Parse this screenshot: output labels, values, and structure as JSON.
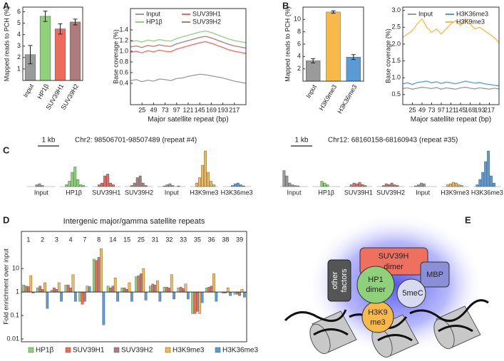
{
  "panel_labels": [
    "A",
    "B",
    "C",
    "D",
    "E"
  ],
  "chart_data": [
    {
      "type": "bar",
      "ylabel": "Mapped reads to PCH (%)",
      "categories": [
        "Input",
        "HP1β",
        "SUV39H1",
        "SUV39H2"
      ],
      "values": [
        2.25,
        5.6,
        4.5,
        5.1
      ],
      "errors": [
        0.8,
        0.45,
        0.45,
        0.25
      ],
      "colors": [
        "#9a9a9a",
        "#8fd17a",
        "#ee6a5c",
        "#b07b7b"
      ],
      "ylim": [
        0,
        6.4
      ],
      "yticks": [
        1,
        2,
        3,
        4,
        5,
        6
      ]
    },
    {
      "type": "line",
      "ylabel": "Base coverage (%)",
      "xlabel": "Major satellite repeat (bp)",
      "x": [
        1,
        13,
        25,
        37,
        49,
        61,
        73,
        85,
        97,
        109,
        121,
        133,
        145,
        157,
        169,
        181,
        193,
        205,
        217,
        229,
        241
      ],
      "xlim": [
        1,
        241
      ],
      "xticks": [
        25,
        49,
        73,
        97,
        121,
        145,
        169,
        193,
        217
      ],
      "ylim": [
        0,
        1.8
      ],
      "yticks": [
        0.4,
        0.6,
        0.8,
        {
          "value": 1,
          "label": "1.0"
        },
        1.2,
        1.4
      ],
      "series": [
        {
          "name": "Input",
          "color": "#9a9a9a",
          "values": [
            0.45,
            0.47,
            0.43,
            0.46,
            0.44,
            0.48,
            0.47,
            0.45,
            0.49,
            0.5,
            0.53,
            0.55,
            0.57,
            0.56,
            0.54,
            0.52,
            0.5,
            0.47,
            0.44,
            0.42,
            0.4
          ]
        },
        {
          "name": "HP1β",
          "color": "#8fd17a",
          "values": [
            1.18,
            1.2,
            1.17,
            1.21,
            1.19,
            1.22,
            1.2,
            1.19,
            1.24,
            1.27,
            1.3,
            1.33,
            1.36,
            1.38,
            1.35,
            1.31,
            1.27,
            1.23,
            1.2,
            1.18,
            1.16
          ]
        },
        {
          "name": "SUV39H1",
          "color": "#ee6a5c",
          "values": [
            0.98,
            1.0,
            0.97,
            1.01,
            0.99,
            1.02,
            1.0,
            0.99,
            1.04,
            1.07,
            1.1,
            1.13,
            1.16,
            1.18,
            1.15,
            1.11,
            1.07,
            1.03,
            1.0,
            0.98,
            0.96
          ]
        },
        {
          "name": "SUV39H2",
          "color": "#b07b7b",
          "values": [
            1.08,
            1.1,
            1.07,
            1.11,
            1.09,
            1.12,
            1.1,
            1.09,
            1.14,
            1.17,
            1.2,
            1.23,
            1.26,
            1.28,
            1.25,
            1.21,
            1.17,
            1.13,
            1.1,
            1.08,
            1.06
          ]
        }
      ]
    },
    {
      "type": "bar",
      "ylabel": "Mapped reads to PCH (%)",
      "categories": [
        "Input",
        "H3K9me3",
        "H3K36me3"
      ],
      "values": [
        3.3,
        11.2,
        3.9
      ],
      "errors": [
        0.35,
        0.2,
        0.4
      ],
      "colors": [
        "#9a9a9a",
        "#f7b94a",
        "#5b9bd5"
      ],
      "ylim": [
        0,
        12
      ],
      "yticks": [
        2,
        4,
        6,
        8,
        10
      ]
    },
    {
      "type": "line",
      "ylabel": "Base coverage (%)",
      "xlabel": "Major satellite repeat (bp)",
      "x": [
        1,
        13,
        25,
        37,
        49,
        61,
        73,
        85,
        97,
        109,
        121,
        133,
        145,
        157,
        169,
        181,
        193,
        205,
        217,
        229,
        241
      ],
      "xlim": [
        1,
        241
      ],
      "xticks": [
        25,
        49,
        73,
        97,
        121,
        145,
        169,
        193,
        217
      ],
      "ylim": [
        0.2,
        3.1
      ],
      "yticks": [
        0.5,
        {
          "value": 1,
          "label": "1.0"
        },
        1.5,
        {
          "value": 2,
          "label": "2.0"
        },
        2.5,
        {
          "value": 3,
          "label": "3.0"
        }
      ],
      "series": [
        {
          "name": "Input",
          "color": "#9a9a9a",
          "values": [
            0.68,
            0.7,
            0.66,
            0.69,
            0.72,
            0.7,
            0.68,
            0.71,
            0.66,
            0.7,
            0.68,
            0.66,
            0.7,
            0.72,
            0.69,
            0.67,
            0.7,
            0.68,
            0.66,
            0.69,
            0.67
          ]
        },
        {
          "name": "H3K36me3",
          "color": "#5b9bd5",
          "values": [
            0.82,
            0.85,
            0.8,
            0.86,
            0.88,
            0.9,
            0.85,
            0.88,
            0.83,
            0.87,
            0.85,
            0.82,
            0.86,
            0.9,
            0.87,
            0.84,
            0.86,
            0.82,
            0.8,
            0.78,
            0.76
          ]
        },
        {
          "name": "H3K9me3",
          "color": "#f7b94a",
          "values": [
            2.2,
            2.3,
            2.4,
            2.6,
            2.75,
            2.5,
            2.35,
            2.45,
            2.3,
            2.45,
            2.6,
            2.7,
            2.55,
            2.75,
            2.6,
            2.45,
            2.5,
            2.4,
            2.3,
            2.2,
            2.05
          ]
        }
      ]
    },
    {
      "type": "track",
      "title": "Chr2: 98506701-98507489 (repeat #4)",
      "scale_label": "1 kb",
      "ylim": [
        0,
        100
      ],
      "series": [
        {
          "name": "Input",
          "color": "#9a9a9a",
          "values": [
            0,
            0,
            5,
            8,
            3,
            0,
            0,
            0
          ]
        },
        {
          "name": "HP1β",
          "color": "#8fd17a",
          "values": [
            0,
            5,
            15,
            40,
            55,
            20,
            5,
            3
          ]
        },
        {
          "name": "SUV39H1",
          "color": "#ee6a5c",
          "values": [
            0,
            5,
            10,
            30,
            35,
            10,
            5,
            0
          ]
        },
        {
          "name": "SUV39H2",
          "color": "#b07b7b",
          "values": [
            0,
            3,
            10,
            25,
            30,
            10,
            3,
            0
          ]
        },
        {
          "name": "Input",
          "color": "#9a9a9a",
          "values": [
            0,
            2,
            5,
            8,
            3,
            0,
            2,
            0
          ]
        },
        {
          "name": "H3K9me3",
          "color": "#f7b94a",
          "values": [
            0,
            10,
            25,
            60,
            100,
            40,
            15,
            5
          ]
        },
        {
          "name": "H3K36me3",
          "color": "#5b9bd5",
          "values": [
            0,
            0,
            3,
            8,
            10,
            5,
            2,
            0
          ]
        }
      ]
    },
    {
      "type": "track",
      "title": "Chr12: 68160158-68160943 (repeat #35)",
      "scale_label": "1 kb",
      "ylim": [
        0,
        100
      ],
      "series": [
        {
          "name": "Input",
          "color": "#9a9a9a",
          "values": [
            45,
            30,
            10,
            5,
            3,
            2,
            0,
            0
          ]
        },
        {
          "name": "HP1β",
          "color": "#8fd17a",
          "values": [
            0,
            0,
            15,
            10,
            5,
            0,
            0,
            0
          ]
        },
        {
          "name": "SUV39H1",
          "color": "#ee6a5c",
          "values": [
            0,
            5,
            10,
            8,
            12,
            6,
            3,
            0
          ]
        },
        {
          "name": "SUV39H2",
          "color": "#b07b7b",
          "values": [
            0,
            3,
            8,
            6,
            10,
            5,
            3,
            0
          ]
        },
        {
          "name": "Input",
          "color": "#9a9a9a",
          "values": [
            0,
            2,
            5,
            10,
            8,
            0,
            0,
            0
          ]
        },
        {
          "name": "H3K9me3",
          "color": "#f7b94a",
          "values": [
            0,
            5,
            8,
            12,
            10,
            5,
            3,
            0
          ]
        },
        {
          "name": "H3K36me3",
          "color": "#5b9bd5",
          "values": [
            5,
            20,
            40,
            70,
            100,
            30,
            10,
            0
          ]
        }
      ]
    },
    {
      "type": "bar",
      "title": "Intergenic major/gamma satellite repeats",
      "ylabel": "Fold enrichment over input",
      "log": true,
      "baseline": 1,
      "categories": [
        "1",
        "2",
        "3",
        "4",
        "7",
        "8",
        "14",
        "15",
        "25",
        "31",
        "32",
        "33",
        "35",
        "36",
        "38",
        "39"
      ],
      "ylim": [
        0.0076,
        380
      ],
      "yticks": [
        0.01,
        0.1,
        1,
        10
      ],
      "series": [
        {
          "name": "HP1β",
          "color": "#8fd17a",
          "values": [
            2.0,
            1.5,
            1.2,
            2.0,
            0.4,
            25,
            1.8,
            1.5,
            4.5,
            1.8,
            1.6,
            1.5,
            0.12,
            1.5,
            1.0,
            0.8
          ]
        },
        {
          "name": "SUV39H1",
          "color": "#ee6a5c",
          "values": [
            1.8,
            1.8,
            1.5,
            2.0,
            0.3,
            22,
            1.5,
            1.5,
            5.0,
            2.2,
            1.6,
            1.6,
            0.12,
            1.6,
            0.9,
            0.8
          ]
        },
        {
          "name": "SUV39H2",
          "color": "#b07b7b",
          "values": [
            1.7,
            1.3,
            1.3,
            1.5,
            0.4,
            30,
            1.8,
            1.3,
            6.0,
            2.0,
            1.5,
            1.4,
            0.15,
            1.8,
            0.9,
            0.7
          ]
        },
        {
          "name": "H3K9me3",
          "color": "#f7b94a",
          "values": [
            5.0,
            2.5,
            2.5,
            5.5,
            1.8,
            70,
            4.0,
            2.5,
            10,
            3.0,
            5.5,
            2.2,
            0.12,
            6.0,
            1.5,
            1.3
          ]
        },
        {
          "name": "H3K36me3",
          "color": "#5b9bd5",
          "values": [
            0.9,
            0.2,
            0.4,
            0.4,
            1.7,
            0.04,
            0.4,
            0.4,
            0.45,
            0.4,
            0.5,
            0.5,
            0.35,
            0.4,
            0.7,
            0.6
          ]
        }
      ]
    }
  ],
  "diagram": {
    "nodes": [
      {
        "label": [
          "SUV39H",
          "dimer"
        ]
      },
      {
        "label": [
          "other",
          "factors"
        ]
      },
      {
        "label": [
          "MBP"
        ]
      },
      {
        "label": [
          "HP1",
          "dimer"
        ]
      },
      {
        "label": [
          "H3K9",
          "me3"
        ]
      },
      {
        "label": [
          "5meC"
        ]
      }
    ]
  }
}
